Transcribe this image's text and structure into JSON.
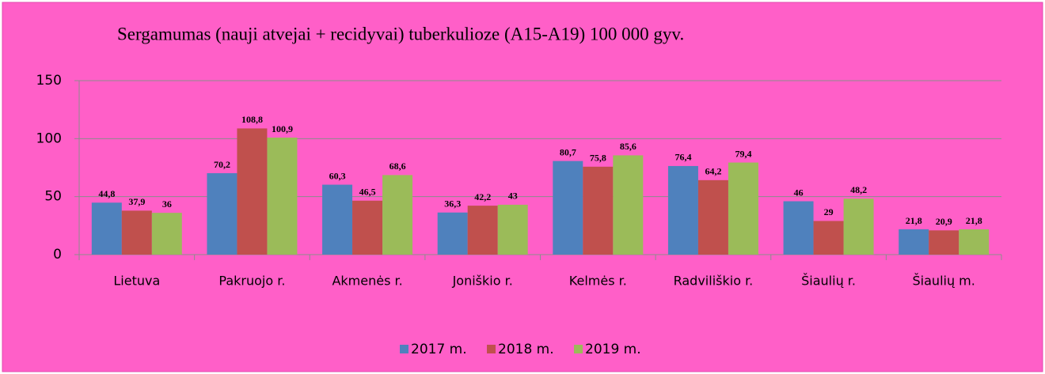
{
  "chart_data": {
    "type": "bar",
    "title": "Sergamumas (nauji atvejai + recidyvai) tuberkulioze (A15-A19) 100 000 gyv.",
    "categories": [
      "Lietuva",
      "Pakruojo r.",
      "Akmenės r.",
      "Joniškio r.",
      "Kelmės r.",
      "Radviliškio r.",
      "Šiaulių r.",
      "Šiaulių m."
    ],
    "series": [
      {
        "name": "2017 m.",
        "color": "#4f81bd",
        "values": [
          44.8,
          70.2,
          60.3,
          36.3,
          80.7,
          76.4,
          46,
          21.8
        ],
        "value_labels": [
          "44,8",
          "70,2",
          "60,3",
          "36,3",
          "80,7",
          "76,4",
          "46",
          "21,8"
        ]
      },
      {
        "name": "2018 m.",
        "color": "#c0504d",
        "values": [
          37.9,
          108.8,
          46.5,
          42.2,
          75.8,
          64.2,
          29,
          20.9
        ],
        "value_labels": [
          "37,9",
          "108,8",
          "46,5",
          "42,2",
          "75,8",
          "64,2",
          "29",
          "20,9"
        ]
      },
      {
        "name": "2019 m.",
        "color": "#9bbb59",
        "values": [
          36,
          100.9,
          68.6,
          43,
          85.6,
          79.4,
          48.2,
          21.8
        ],
        "value_labels": [
          "36",
          "100,9",
          "68,6",
          "43",
          "85,6",
          "79,4",
          "48,2",
          "21,8"
        ]
      }
    ],
    "ylim": [
      0,
      150
    ],
    "yticks": [
      0,
      50,
      100,
      150
    ],
    "grid": true,
    "legend": "bottom"
  }
}
